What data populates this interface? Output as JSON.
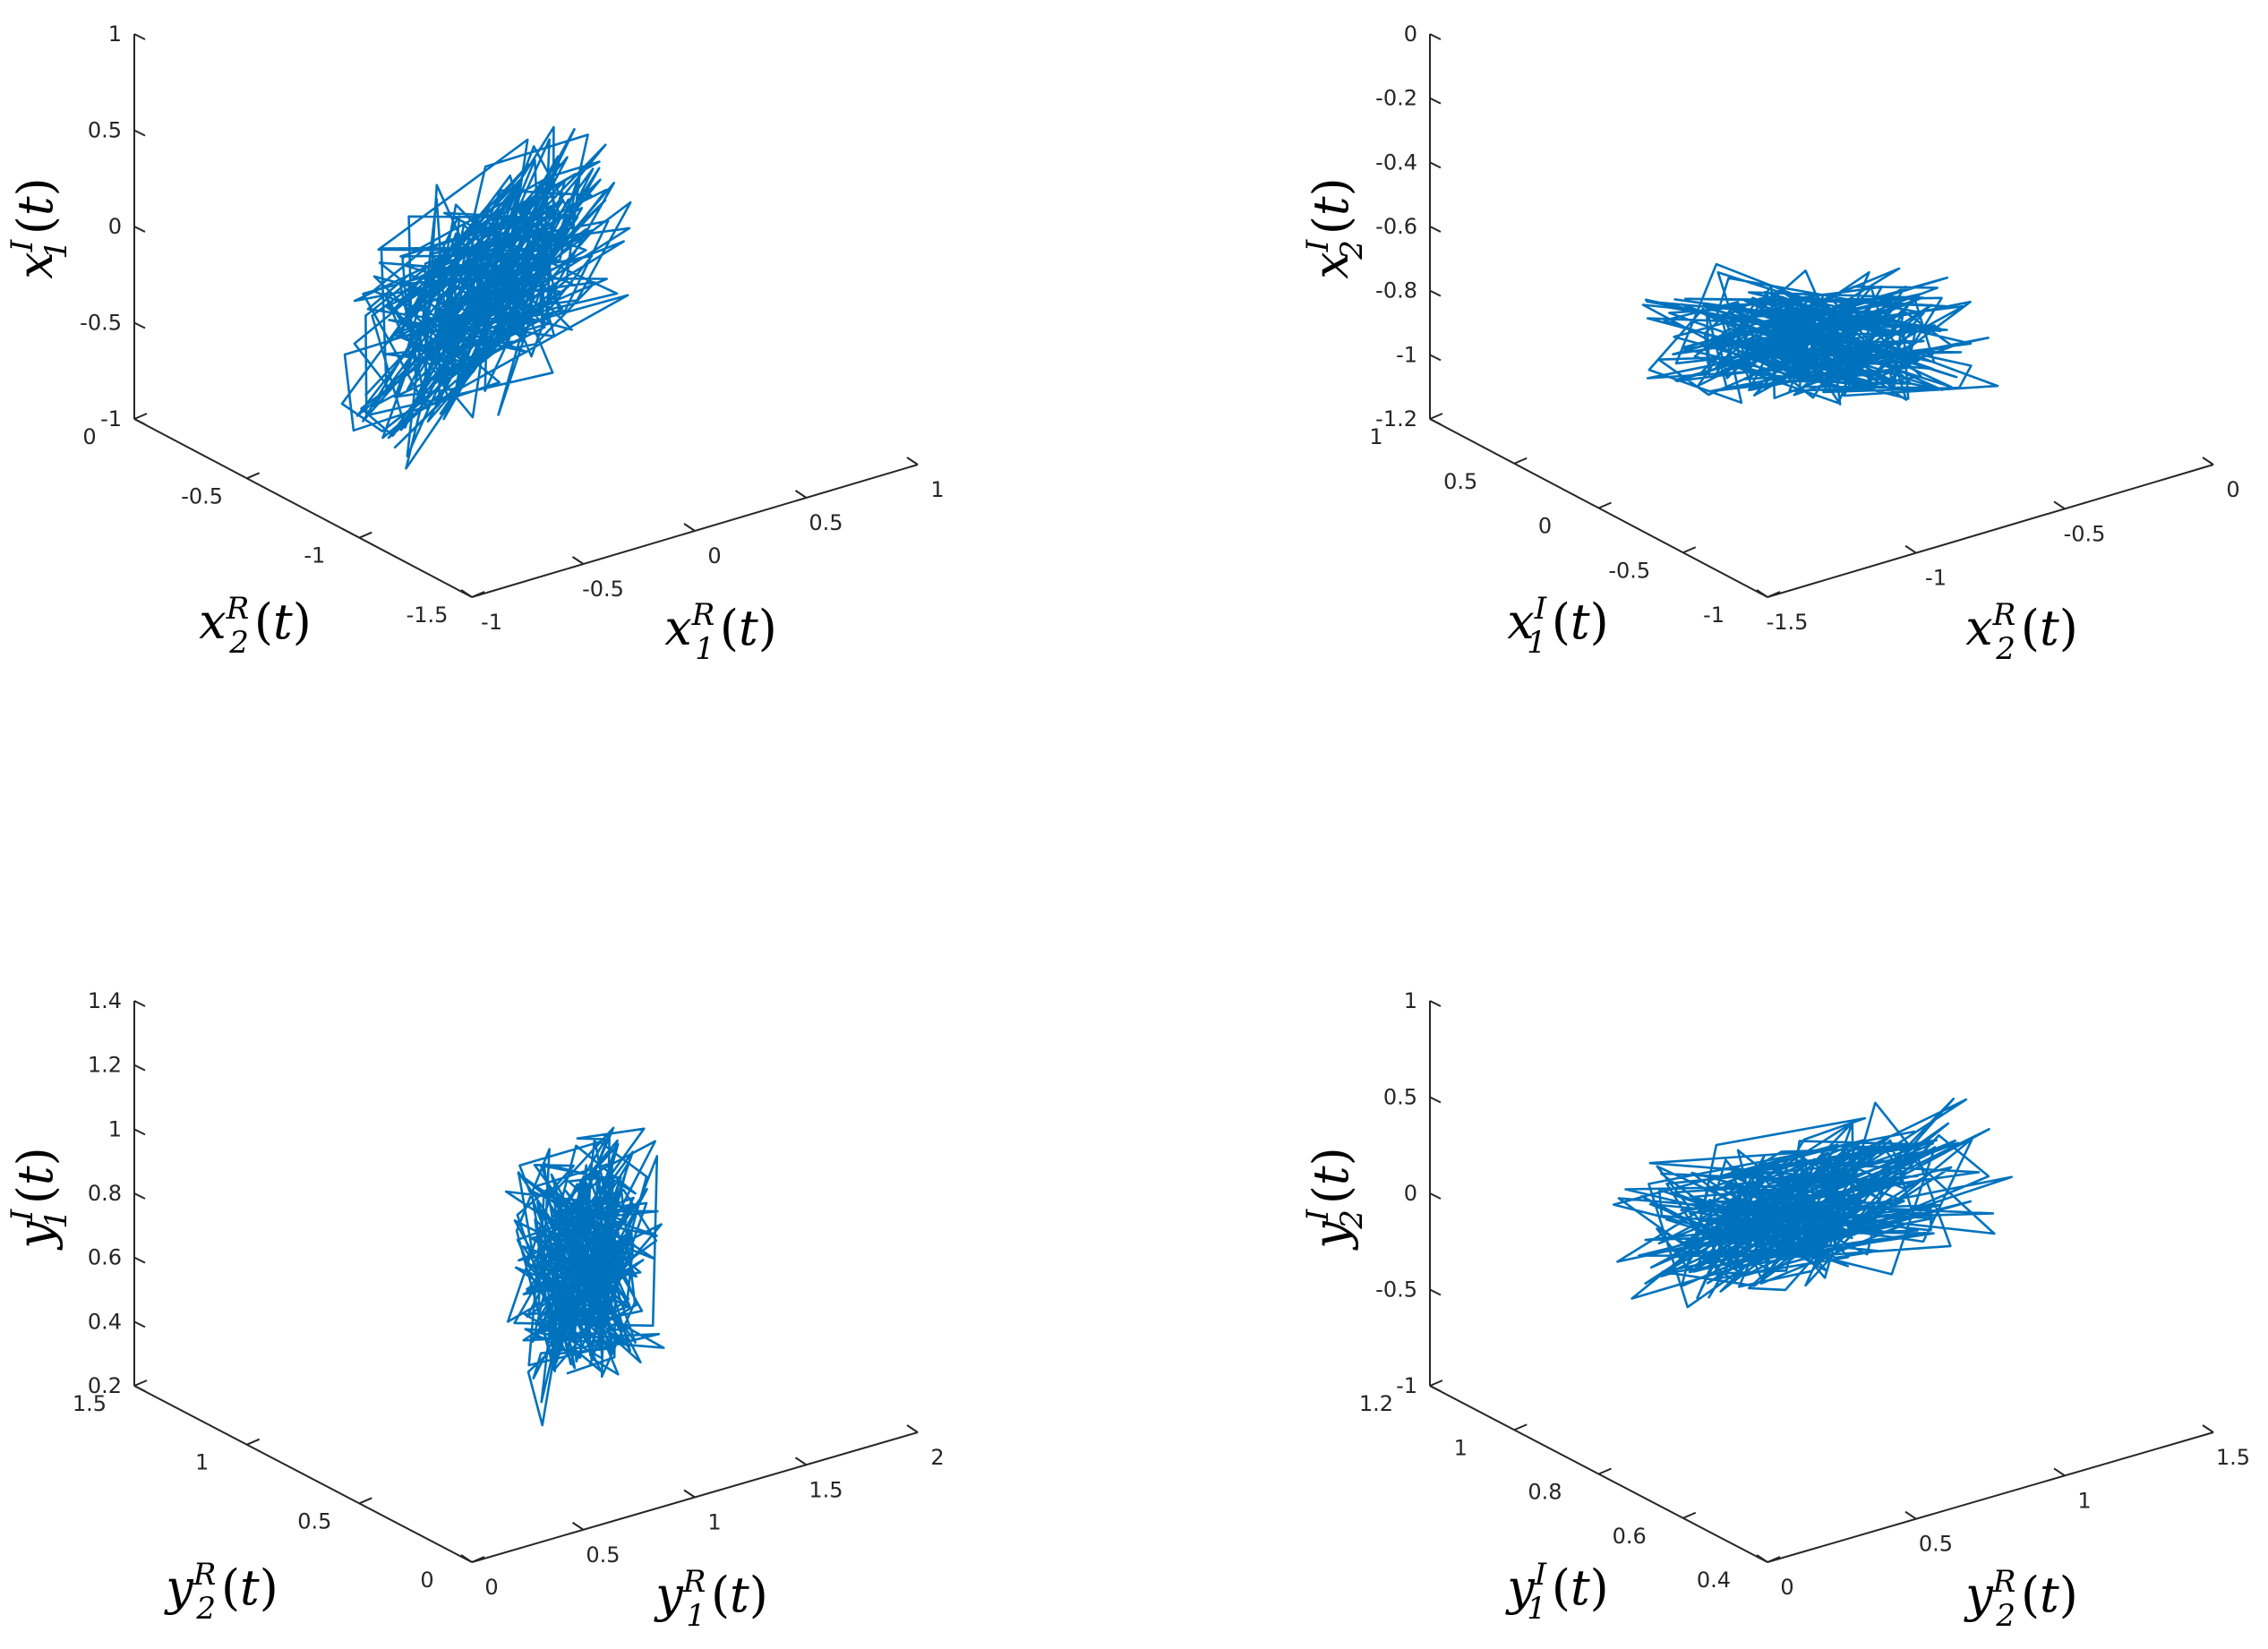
{
  "chart_data": [
    {
      "type": "line3d",
      "id": "p1",
      "axes": {
        "z": {
          "label": {
            "base": "x",
            "sup": "I",
            "sub": "1"
          },
          "ticks": [
            "1",
            "0.5",
            "0",
            "-0.5",
            "-1"
          ]
        },
        "left": {
          "label": {
            "base": "x",
            "sup": "R",
            "sub": "2"
          },
          "ticks": [
            "0",
            "-0.5",
            "-1",
            "-1.5"
          ]
        },
        "right": {
          "label": {
            "base": "x",
            "sup": "R",
            "sub": "1"
          },
          "ticks": [
            "-1",
            "-0.5",
            "0",
            "0.5",
            "1"
          ]
        }
      },
      "trajectory_style": "dense-tangle-diagonal"
    },
    {
      "type": "line3d",
      "id": "p2",
      "axes": {
        "z": {
          "label": {
            "base": "x",
            "sup": "I",
            "sub": "2"
          },
          "ticks": [
            "0",
            "-0.2",
            "-0.4",
            "-0.6",
            "-0.8",
            "-1",
            "-1.2"
          ]
        },
        "left": {
          "label": {
            "base": "x",
            "sup": "I",
            "sub": "1"
          },
          "ticks": [
            "1",
            "0.5",
            "0",
            "-0.5",
            "-1"
          ]
        },
        "right": {
          "label": {
            "base": "x",
            "sup": "R",
            "sub": "2"
          },
          "ticks": [
            "-1.5",
            "-1",
            "-0.5",
            "0"
          ]
        }
      },
      "trajectory_style": "horizontal-loops"
    },
    {
      "type": "line3d",
      "id": "p3",
      "axes": {
        "z": {
          "label": {
            "base": "y",
            "sup": "I",
            "sub": "1"
          },
          "ticks": [
            "1.4",
            "1.2",
            "1",
            "0.8",
            "0.6",
            "0.4",
            "0.2"
          ]
        },
        "left": {
          "label": {
            "base": "y",
            "sup": "R",
            "sub": "2"
          },
          "ticks": [
            "1.5",
            "1",
            "0.5",
            "0"
          ]
        },
        "right": {
          "label": {
            "base": "y",
            "sup": "R",
            "sub": "1"
          },
          "ticks": [
            "0",
            "0.5",
            "1",
            "1.5",
            "2"
          ]
        }
      },
      "trajectory_style": "vertical-tangle"
    },
    {
      "type": "line3d",
      "id": "p4",
      "axes": {
        "z": {
          "label": {
            "base": "y",
            "sup": "I",
            "sub": "2"
          },
          "ticks": [
            "1",
            "0.5",
            "0",
            "-0.5",
            "-1"
          ]
        },
        "left": {
          "label": {
            "base": "y",
            "sup": "I",
            "sub": "1"
          },
          "ticks": [
            "1.2",
            "1",
            "0.8",
            "0.6",
            "0.4"
          ]
        },
        "right": {
          "label": {
            "base": "y",
            "sup": "R",
            "sub": "2"
          },
          "ticks": [
            "0",
            "0.5",
            "1",
            "1.5"
          ]
        }
      },
      "trajectory_style": "wide-tangle"
    }
  ],
  "colors": {
    "trajectory": "#0072BD",
    "axis": "#262626"
  },
  "label_arg": "t"
}
